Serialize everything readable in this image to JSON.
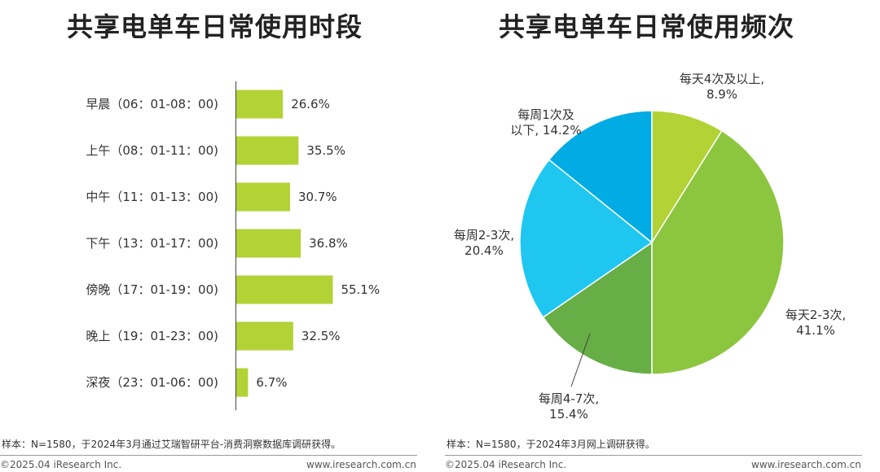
{
  "left": {
    "title": "共享电单车日常使用时段",
    "note": "样本：N=1580，于2024年3月通过艾瑞智研平台-消费洞察数据库调研获得。",
    "copyright": "©2025.04 iResearch Inc.",
    "site": "www.iresearch.com.cn"
  },
  "right": {
    "title": "共享电单车日常使用频次",
    "note": "样本：N=1580，于2024年3月网上调研获得。",
    "copyright": "©2025.04 iResearch Inc.",
    "site": "www.iresearch.com.cn"
  },
  "chart_data": [
    {
      "type": "bar",
      "orientation": "horizontal",
      "title": "共享电单车日常使用时段",
      "categories": [
        "早晨（06：01-08：00)",
        "上午（08：01-11：00)",
        "中午（11：01-13：00)",
        "下午（13：01-17：00)",
        "傍晚（17：01-19：00)",
        "晚上（19：01-23：00)",
        "深夜（23：01-06：00)"
      ],
      "values": [
        26.6,
        35.5,
        30.7,
        36.8,
        55.1,
        32.5,
        6.7
      ],
      "value_labels": [
        "26.6%",
        "35.5%",
        "30.7%",
        "36.8%",
        "55.1%",
        "32.5%",
        "6.7%"
      ],
      "unit": "%",
      "color": "#B2D235"
    },
    {
      "type": "pie",
      "title": "共享电单车日常使用频次",
      "slices": [
        {
          "label": "每天4次及以上,",
          "value": 8.9,
          "value_label": "8.9%",
          "color": "#B2D235"
        },
        {
          "label": "每天2-3次,",
          "value": 41.1,
          "value_label": "41.1%",
          "color": "#8CC63F"
        },
        {
          "label": "每周4-7次,",
          "value": 15.4,
          "value_label": "15.4%",
          "color": "#66AE45"
        },
        {
          "label": "每周2-3次,",
          "value": 20.4,
          "value_label": "20.4%",
          "color": "#1FC7F0"
        },
        {
          "label": "每周1次及",
          "label2": "以下, 14.2%",
          "value": 14.2,
          "value_label": "",
          "color": "#00ACE3"
        }
      ]
    }
  ]
}
